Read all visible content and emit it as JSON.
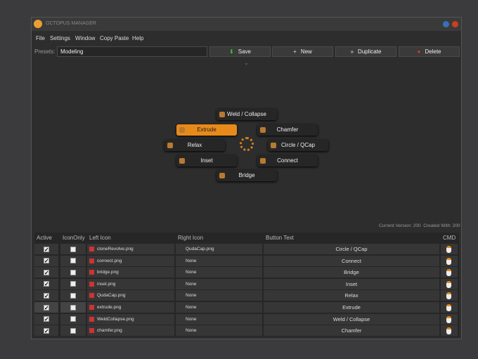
{
  "window": {
    "title": "OCTOPUS MANAGER"
  },
  "menu": [
    "File",
    "Settings",
    "Window",
    "Copy Paste",
    "Help"
  ],
  "toolbar": {
    "presets_label": "Presets:",
    "preset": "Modeling",
    "buttons": [
      "Save",
      "New",
      "Duplicate",
      "Delete"
    ]
  },
  "radial": {
    "buttons": [
      "Weld / Collapse",
      "Extrude",
      "Chamfer",
      "Relax",
      "Circle / QCap",
      "Inset",
      "Connect",
      "Bridge"
    ]
  },
  "version": {
    "current": "Current Version: 200",
    "created": "Created With: 200"
  },
  "table": {
    "headers": [
      "Active",
      "IconOnly",
      "Left Icon",
      "Right Icon",
      "Button Text",
      "CMD"
    ],
    "rows": [
      [
        "cloneRevolve.png",
        "QudaCap.png",
        "Circle / QCap"
      ],
      [
        "connect.png",
        "None",
        "Connect"
      ],
      [
        "bridge.png",
        "None",
        "Bridge"
      ],
      [
        "inset.png",
        "None",
        "Inset"
      ],
      [
        "QudaCap.png",
        "None",
        "Relax"
      ],
      [
        "extrude.png",
        "None",
        "Extrude"
      ],
      [
        "WeldCollapse.png",
        "None",
        "Weld / Collapse"
      ],
      [
        "chamfer.png",
        "None",
        "Chamfer"
      ]
    ]
  }
}
